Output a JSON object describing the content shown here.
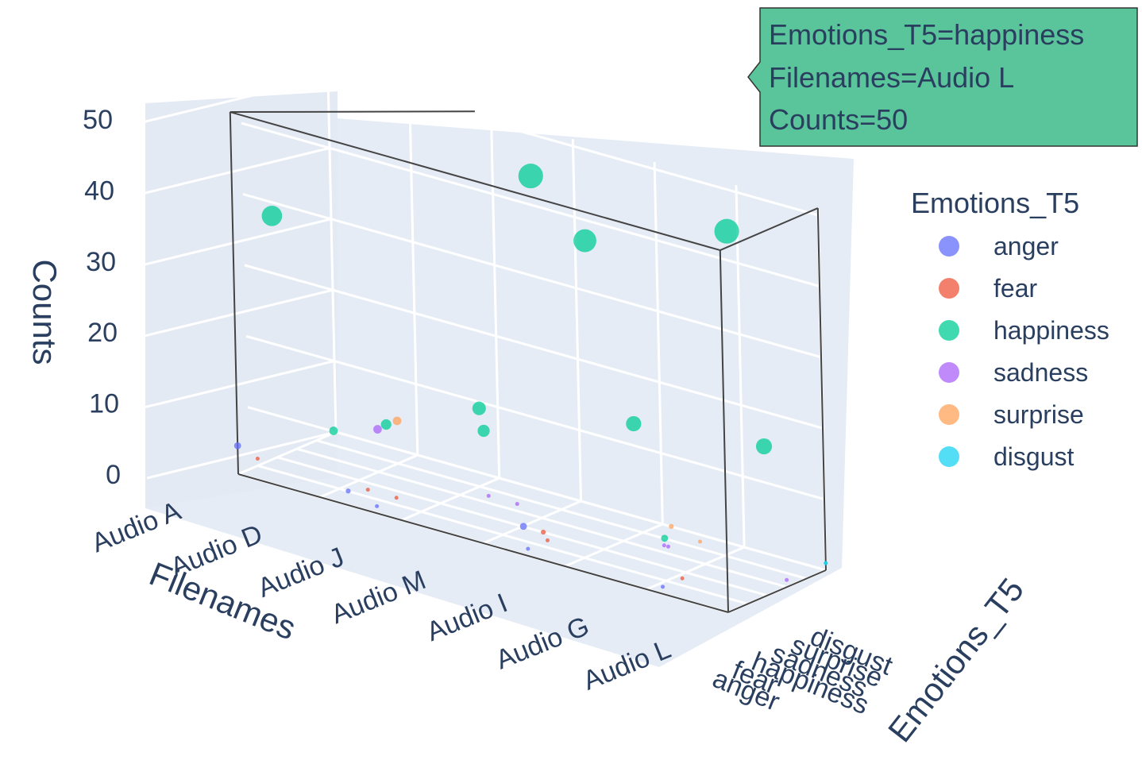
{
  "chart_data": {
    "type": "scatter",
    "dimensions": "3d",
    "x_axis": {
      "title": "Filenames",
      "ticks": [
        "Audio A",
        "Audio D",
        "Audio J",
        "Audio M",
        "Audio I",
        "Audio G",
        "Audio L"
      ]
    },
    "y_axis": {
      "title": "Emotions_T5",
      "ticks": [
        "anger",
        "fear",
        "happiness",
        "sadness",
        "surprise",
        "disgust"
      ]
    },
    "z_axis": {
      "title": "Counts",
      "ticks": [
        "0",
        "10",
        "20",
        "30",
        "40",
        "50"
      ],
      "range": [
        0,
        50
      ]
    },
    "legend": {
      "title": "Emotions_T5",
      "placement": "right",
      "items": [
        {
          "label": "anger",
          "color": "#636efa"
        },
        {
          "label": "fear",
          "color": "#ef553b"
        },
        {
          "label": "happiness",
          "color": "#00cc96"
        },
        {
          "label": "sadness",
          "color": "#ab63fa"
        },
        {
          "label": "surprise",
          "color": "#ffa15a"
        },
        {
          "label": "disgust",
          "color": "#19d3f3"
        }
      ]
    },
    "series": [
      {
        "name": "anger",
        "color": "#636efa",
        "points": [
          {
            "x": "Audio A",
            "z": 4
          },
          {
            "x": "Audio D",
            "z": 2
          },
          {
            "x": "Audio J",
            "z": 1
          },
          {
            "x": "Audio M",
            "z": 4
          },
          {
            "x": "Audio I",
            "z": 1
          },
          {
            "x": "Audio G",
            "z": 1
          }
        ]
      },
      {
        "name": "fear",
        "color": "#ef553b",
        "points": [
          {
            "x": "Audio A",
            "z": 1
          },
          {
            "x": "Audio D",
            "z": 1
          },
          {
            "x": "Audio J",
            "z": 1
          },
          {
            "x": "Audio M",
            "z": 2
          },
          {
            "x": "Audio I",
            "z": 1
          },
          {
            "x": "Audio G",
            "z": 1
          }
        ]
      },
      {
        "name": "happiness",
        "color": "#00cc96",
        "points": [
          {
            "x": "Audio A",
            "z": 34
          },
          {
            "x": "Audio D",
            "z": 9
          },
          {
            "x": "Audio D",
            "z": 6
          },
          {
            "x": "Audio J",
            "z": 15
          },
          {
            "x": "Audio M",
            "z": 12
          },
          {
            "x": "Audio M",
            "z": 50
          },
          {
            "x": "Audio I",
            "z": 43
          },
          {
            "x": "Audio I",
            "z": 19
          },
          {
            "x": "Audio G",
            "z": 4
          },
          {
            "x": "Audio L",
            "z": 21
          },
          {
            "x": "Audio L",
            "z": 50
          }
        ]
      },
      {
        "name": "sadness",
        "color": "#ab63fa",
        "points": [
          {
            "x": "Audio D",
            "z": 6
          },
          {
            "x": "Audio J",
            "z": 1
          },
          {
            "x": "Audio M",
            "z": 1
          },
          {
            "x": "Audio I",
            "z": 1
          },
          {
            "x": "Audio G",
            "z": 1
          },
          {
            "x": "Audio L",
            "z": 1
          }
        ]
      },
      {
        "name": "surprise",
        "color": "#ffa15a",
        "points": [
          {
            "x": "Audio D",
            "z": 6
          },
          {
            "x": "Audio I",
            "z": 2
          },
          {
            "x": "Audio G",
            "z": 1
          }
        ]
      },
      {
        "name": "disgust",
        "color": "#19d3f3",
        "points": [
          {
            "x": "Audio L",
            "z": 1
          },
          {
            "x": "Audio L",
            "z": 1
          }
        ]
      }
    ],
    "tooltip": {
      "lines": [
        "Emotions_T5=happiness",
        "Filenames=Audio L",
        "Counts=50"
      ],
      "color": "#5ac59a"
    },
    "grid": true,
    "scene_background": "#e5ecf6"
  }
}
